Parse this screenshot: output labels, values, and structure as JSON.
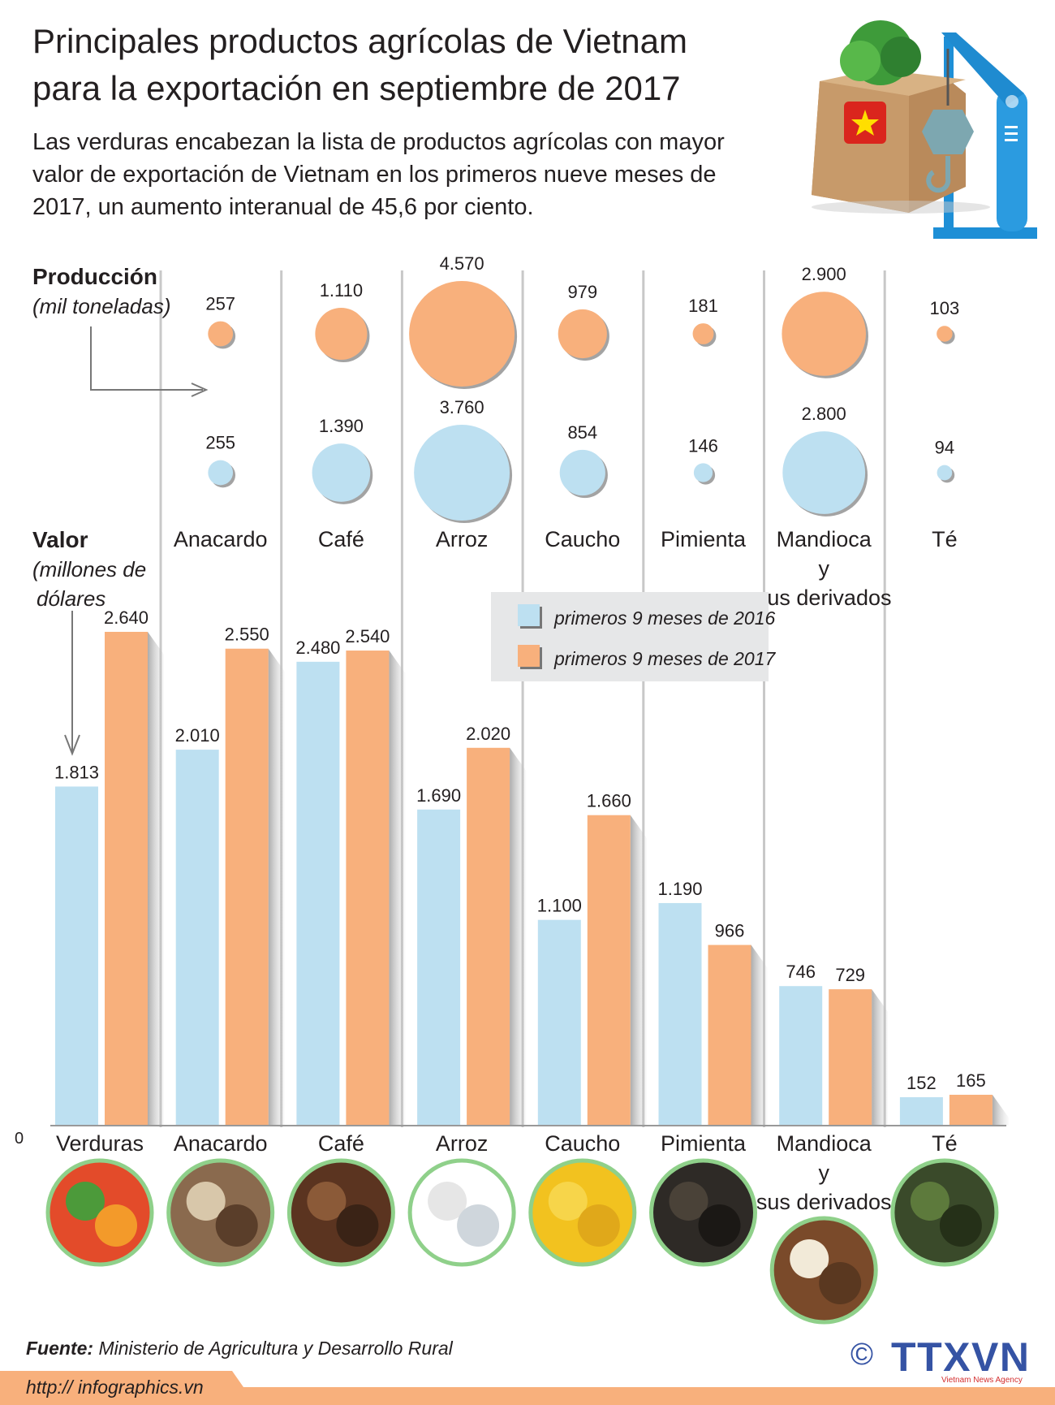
{
  "header": {
    "title_lines": [
      "Principales productos agrícolas de Vietnam",
      "para la exportación en septiembre de 2017"
    ],
    "subtitle_lines": [
      "Las verduras encabezan la lista de productos agrícolas con mayor",
      "valor de exportación de Vietnam en los primeros nueve meses de",
      "2017, un aumento interanual de 45,6 por ciento."
    ]
  },
  "production_label": {
    "title": "Producción",
    "unit": "(mil toneladas)"
  },
  "value_label": {
    "title": "Valor",
    "unit_lines": [
      "(millones de",
      "dólares"
    ]
  },
  "footer": {
    "source_label": "Fuente:",
    "source_text": "Ministerio de Agricultura y Desarrollo Rural",
    "url": "http:// infographics.vn",
    "logo_text": "TTXVN",
    "logo_sub": "Vietnam News Agency",
    "copyright": "©"
  },
  "colors": {
    "series_2016": "#bde0f1",
    "series_2017": "#f8b07c",
    "separator": "#c8c8c8",
    "legend_bg": "#e6e7e8",
    "footer_band": "#f8b07c",
    "photo_ring": "#8fd08a",
    "logo": "#3553a4"
  },
  "icons": [
    "vegetable-box-crane-illustration",
    "vietnam-flag-icon",
    "product-photo"
  ],
  "chart_data": [
    {
      "type": "bubble",
      "title": "Producción",
      "unit": "(mil toneladas)",
      "categories": [
        "Anacardo",
        "Café",
        "Arroz",
        "Caucho",
        "Pimienta",
        "Mandioca y sus derivados",
        "Té"
      ],
      "category_label_lines": [
        [
          "Anacardo"
        ],
        [
          "Café"
        ],
        [
          "Arroz"
        ],
        [
          "Caucho"
        ],
        [
          "Pimienta"
        ],
        [
          "Mandioca",
          "y",
          "sus derivados"
        ],
        [
          "Té"
        ]
      ],
      "series": [
        {
          "name": "primeros 9 meses de 2017",
          "values": [
            257,
            1110,
            4570,
            979,
            181,
            2900,
            103
          ],
          "labels": [
            "257",
            "1.110",
            "4.570",
            "979",
            "181",
            "2.900",
            "103"
          ]
        },
        {
          "name": "primeros 9 meses de 2016",
          "values": [
            255,
            1390,
            3760,
            854,
            146,
            2800,
            94
          ],
          "labels": [
            "255",
            "1.390",
            "3.760",
            "854",
            "146",
            "2.800",
            "94"
          ]
        }
      ]
    },
    {
      "type": "bar",
      "title": "Valor",
      "unit": "(millones de dólares",
      "categories": [
        "Verduras",
        "Anacardo",
        "Café",
        "Arroz",
        "Caucho",
        "Pimienta",
        "Mandioca y sus derivados",
        "Té"
      ],
      "category_label_lines": [
        [
          "Verduras"
        ],
        [
          "Anacardo"
        ],
        [
          "Café"
        ],
        [
          "Arroz"
        ],
        [
          "Caucho"
        ],
        [
          "Pimienta"
        ],
        [
          "Mandioca",
          "y",
          "sus derivados"
        ],
        [
          "Té"
        ]
      ],
      "y_origin_label": "0",
      "ylim": [
        0,
        2640
      ],
      "legend": {
        "placement": "top-center",
        "entries": [
          "primeros 9 meses de 2016",
          "primeros 9 meses de  2017"
        ]
      },
      "series": [
        {
          "name": "primeros 9 meses de 2016",
          "values": [
            1813,
            2010,
            2480,
            1690,
            1100,
            1190,
            746,
            152
          ],
          "labels": [
            "1.813",
            "2.010",
            "2.480",
            "1.690",
            "1.100",
            "1.190",
            "746",
            "152"
          ]
        },
        {
          "name": "primeros 9 meses de 2017",
          "values": [
            2640,
            2550,
            2540,
            2020,
            1660,
            966,
            729,
            165
          ],
          "labels": [
            "2.640",
            "2.550",
            "2.540",
            "2.020",
            "1.660",
            "966",
            "729",
            "165"
          ]
        }
      ]
    }
  ]
}
